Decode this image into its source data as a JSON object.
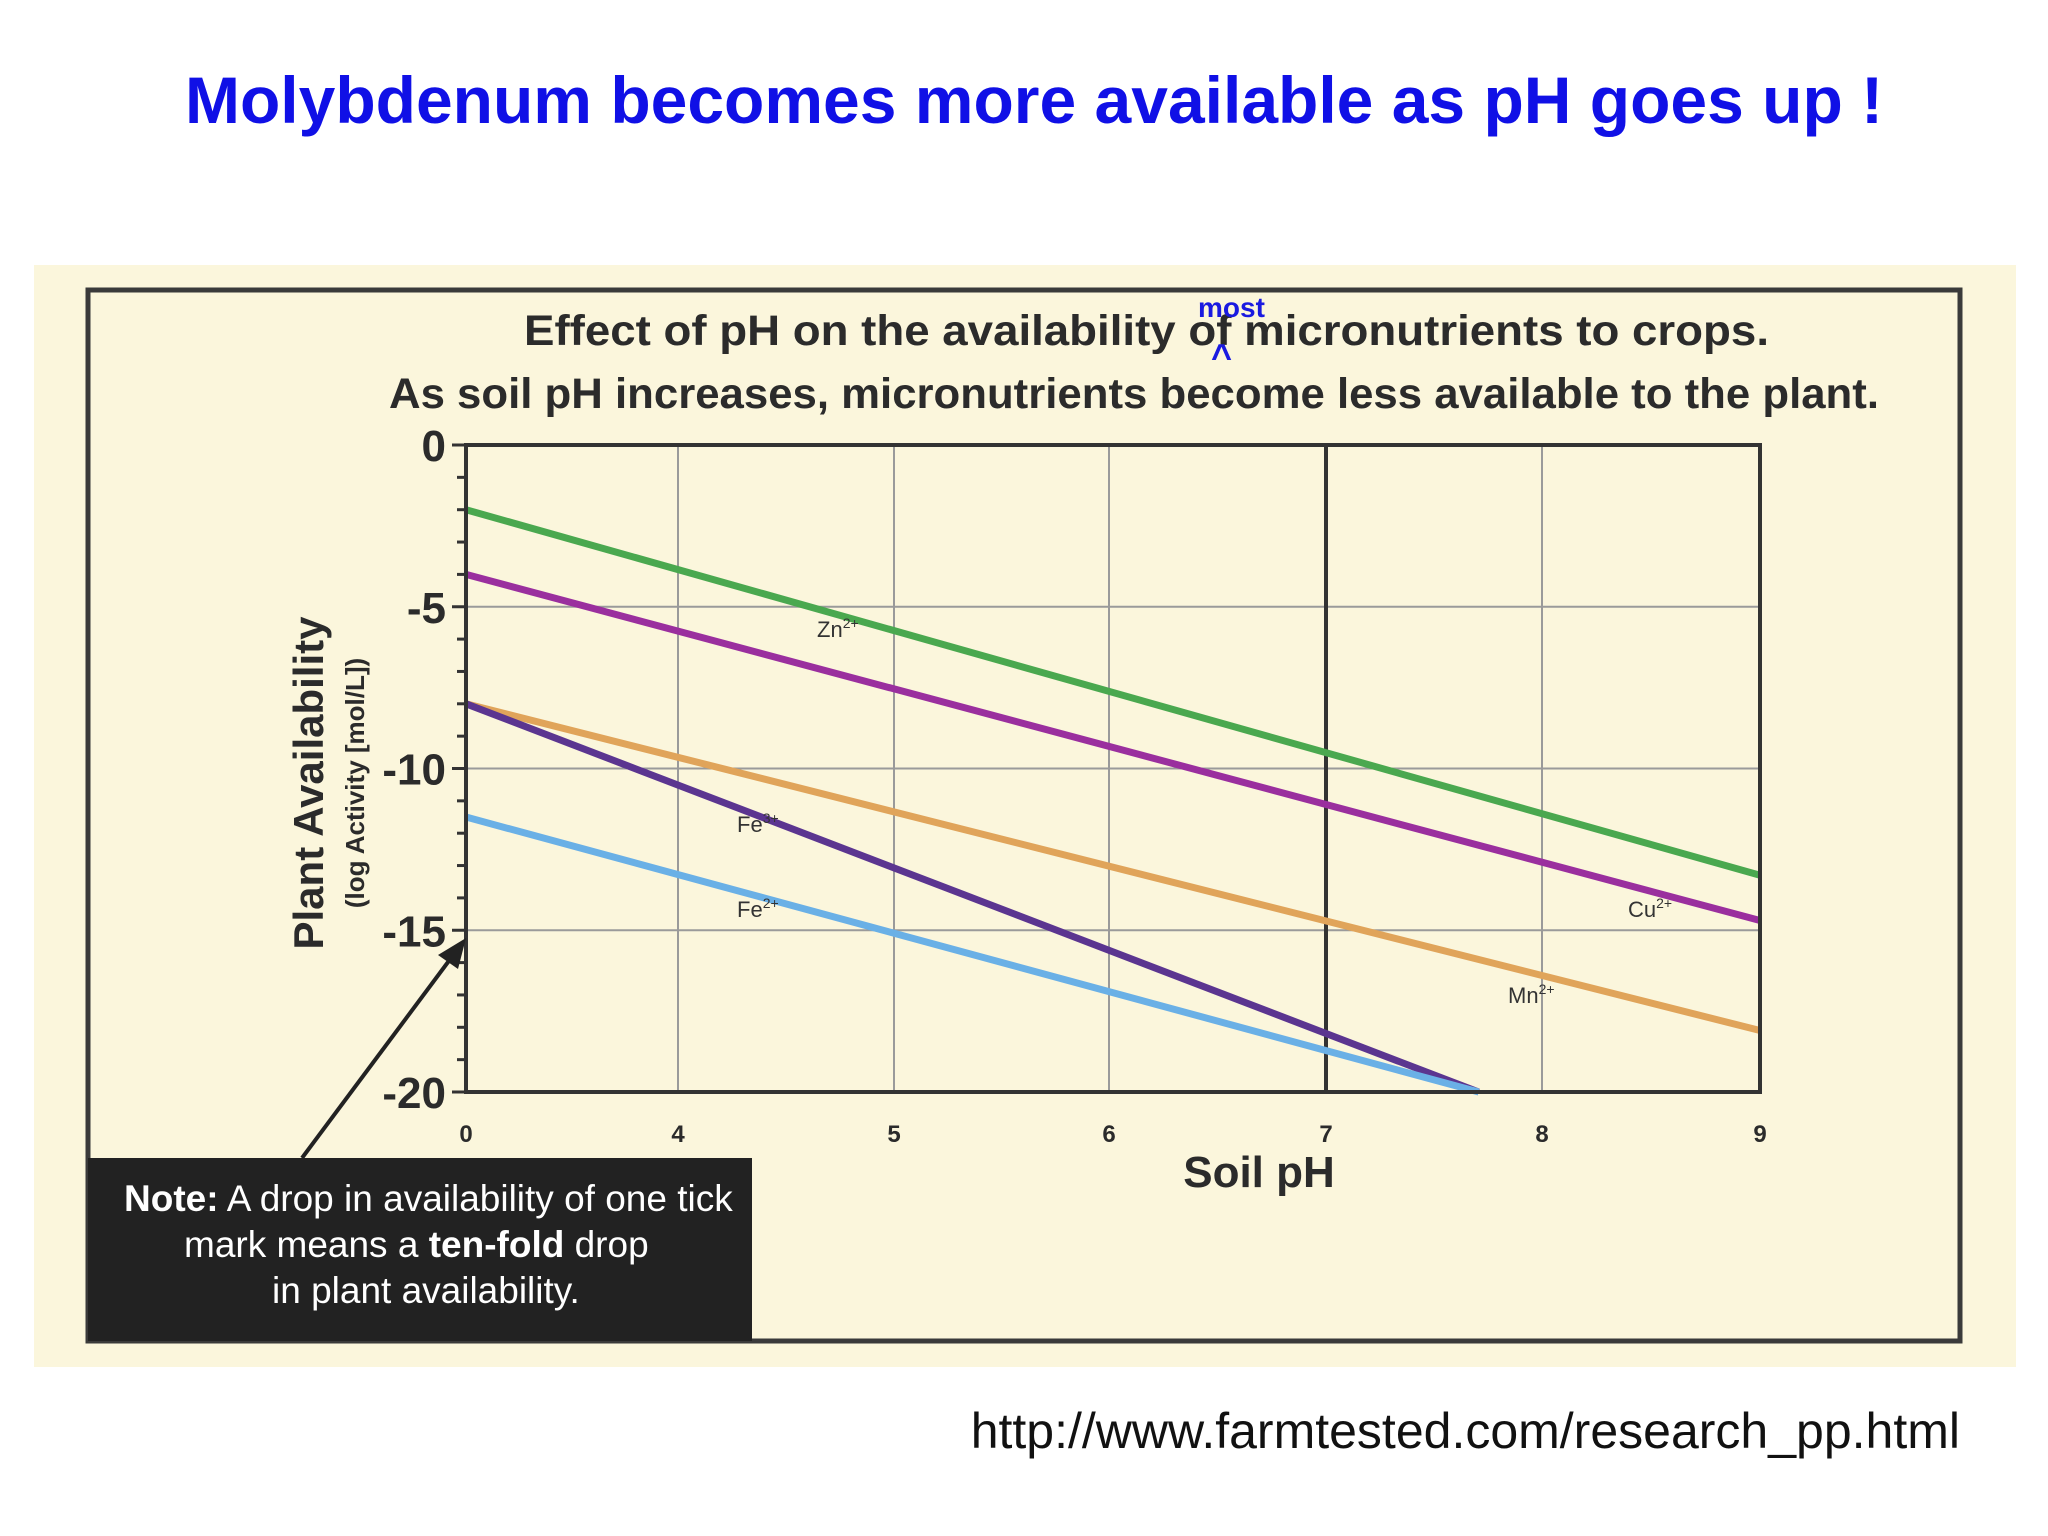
{
  "slide": {
    "title": "Molybdenum becomes more available as pH goes up !",
    "source": "http://www.farmtested.com/research_pp.html",
    "title_color": "#1010e6"
  },
  "chart_data": {
    "type": "line",
    "title": "Effect of pH on the availability of micronutrients to crops.",
    "subtitle": "As soil pH increases, micronutrients become less available to the plant.",
    "insertion": {
      "word": "most",
      "caret": "^"
    },
    "xlabel": "Soil pH",
    "ylabel": "Plant Availability",
    "ylabel_units": "(log Activity [mol/L])",
    "xticks": [
      "0",
      "4",
      "5",
      "6",
      "7",
      "8",
      "9"
    ],
    "x_scale": "broken axis: 0 followed by 4 to 9",
    "yticks": [
      "0",
      "-5",
      "-10",
      "-15",
      "-20"
    ],
    "ylim": [
      -20,
      0
    ],
    "grid": true,
    "series": [
      {
        "name": "Zn2+",
        "label": "Zn",
        "charge": "2+",
        "color": "#4aa84f",
        "points": [
          [
            3,
            -2.0
          ],
          [
            9,
            -13.3
          ]
        ]
      },
      {
        "name": "Cu2+",
        "label": "Cu",
        "charge": "2+",
        "color": "#9a2f9e",
        "points": [
          [
            3,
            -4.0
          ],
          [
            9,
            -14.7
          ]
        ]
      },
      {
        "name": "Mn2+",
        "label": "Mn",
        "charge": "2+",
        "color": "#e0a45a",
        "points": [
          [
            3,
            -8.0
          ],
          [
            9,
            -18.1
          ]
        ]
      },
      {
        "name": "Fe3+",
        "label": "Fe",
        "charge": "3+",
        "color": "#5b3590",
        "points": [
          [
            3,
            -8.0
          ],
          [
            7.7,
            -20.0
          ]
        ]
      },
      {
        "name": "Fe2+",
        "label": "Fe",
        "charge": "2+",
        "color": "#6ab0e6",
        "points": [
          [
            3,
            -11.5
          ],
          [
            7.7,
            -20.0
          ]
        ]
      }
    ],
    "note": {
      "line1_bold": "Note:",
      "line1": " A drop in availability of one tick",
      "line2_pre": "mark means a ",
      "line2_bold": "ten-fold",
      "line2_post": " drop",
      "line3": "in plant availability."
    }
  }
}
